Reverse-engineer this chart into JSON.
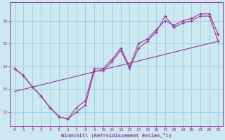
{
  "xlabel": "Windchill (Refroidissement éolien,°C)",
  "bg_color": "#cce8f0",
  "line_color": "#993399",
  "grid_color": "#99ccdd",
  "xlim": [
    -0.5,
    23.5
  ],
  "ylim": [
    11.4,
    16.8
  ],
  "xticks": [
    0,
    1,
    2,
    3,
    4,
    5,
    6,
    7,
    8,
    9,
    10,
    11,
    12,
    13,
    14,
    15,
    16,
    17,
    18,
    19,
    20,
    21,
    22,
    23
  ],
  "yticks": [
    12,
    13,
    14,
    15,
    16
  ],
  "series1_x": [
    0,
    1,
    2,
    3,
    4,
    5,
    6,
    7,
    8,
    9,
    10,
    11,
    12,
    13,
    14,
    15,
    16,
    17,
    18,
    19,
    20,
    21,
    22,
    23
  ],
  "series1_y": [
    13.9,
    13.6,
    13.1,
    12.7,
    12.2,
    11.8,
    11.7,
    12.0,
    12.3,
    13.8,
    13.8,
    14.2,
    14.7,
    13.9,
    14.8,
    15.1,
    15.5,
    16.2,
    15.7,
    15.9,
    16.0,
    16.2,
    16.2,
    15.1
  ],
  "series2_x": [
    0,
    1,
    2,
    3,
    4,
    5,
    6,
    7,
    8,
    9,
    10,
    11,
    12,
    13,
    14,
    15,
    16,
    17,
    18,
    19,
    20,
    21,
    22,
    23
  ],
  "series2_y": [
    13.9,
    13.6,
    13.1,
    12.7,
    12.2,
    11.8,
    11.7,
    12.2,
    12.5,
    13.9,
    13.9,
    14.3,
    14.8,
    14.0,
    15.0,
    15.2,
    15.6,
    16.0,
    15.8,
    16.0,
    16.1,
    16.3,
    16.3,
    15.4
  ],
  "series3_x": [
    0,
    23
  ],
  "series3_y": [
    12.9,
    15.1
  ]
}
